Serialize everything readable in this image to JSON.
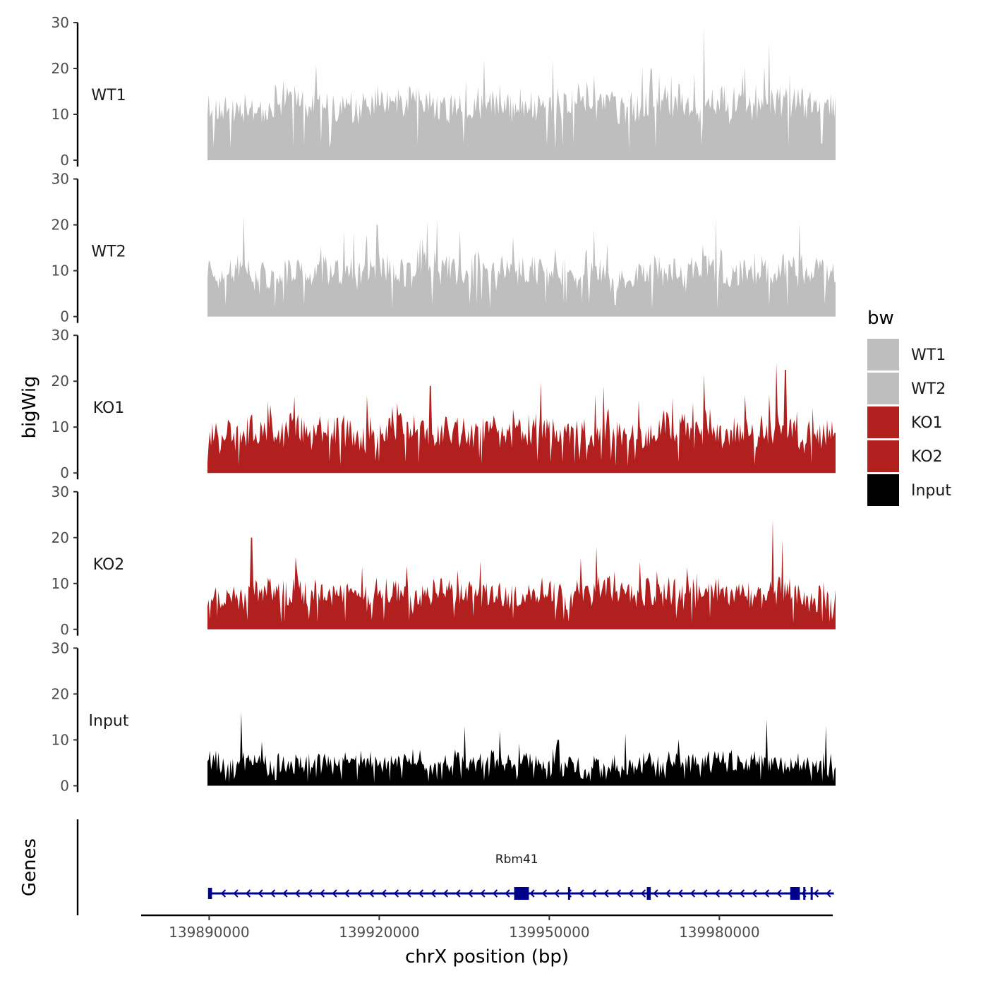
{
  "chart_data": {
    "type": "area",
    "ylabel": "bigWig",
    "xlabel": "chrX position (bp)",
    "gene_track_label": "Genes",
    "y_ticks": [
      0,
      10,
      20,
      30
    ],
    "ylim": [
      0,
      30
    ],
    "xlim": [
      139878000,
      140000000
    ],
    "x_ticks": [
      {
        "value": 139890000,
        "label": "139890000"
      },
      {
        "value": 139920000,
        "label": "139920000"
      },
      {
        "value": 139950000,
        "label": "139950000"
      },
      {
        "value": 139980000,
        "label": "139980000"
      }
    ],
    "signal_range": [
      139889700,
      140000500
    ],
    "legend": {
      "title": "bw",
      "entries": [
        {
          "label": "WT1",
          "color": "#bebebe"
        },
        {
          "label": "WT2",
          "color": "#bebebe"
        },
        {
          "label": "KO1",
          "color": "#b21f1f"
        },
        {
          "label": "KO2",
          "color": "#b21f1f"
        },
        {
          "label": "Input",
          "color": "#000000"
        }
      ]
    },
    "series": [
      {
        "name": "WT1",
        "color": "#bebebe",
        "base": 11,
        "amp": 5,
        "peak": 29,
        "peak_pos": 0.79,
        "seed": 11,
        "peaks": [
          [
            0.79,
            29
          ],
          [
            0.895,
            25.5
          ],
          [
            0.44,
            22
          ],
          [
            0.55,
            22
          ]
        ]
      },
      {
        "name": "WT2",
        "color": "#bebebe",
        "base": 9,
        "amp": 5,
        "peak": 22,
        "peak_pos": 0.06,
        "seed": 23,
        "peaks": [
          [
            0.058,
            22
          ],
          [
            0.365,
            21
          ],
          [
            0.81,
            21.5
          ],
          [
            0.27,
            20
          ]
        ]
      },
      {
        "name": "KO1",
        "color": "#b21f1f",
        "base": 8,
        "amp": 5,
        "peak": 24,
        "peak_pos": 0.906,
        "seed": 37,
        "peaks": [
          [
            0.906,
            24
          ],
          [
            0.92,
            22.5
          ],
          [
            0.79,
            21.5
          ],
          [
            0.355,
            19
          ],
          [
            0.63,
            19
          ]
        ]
      },
      {
        "name": "KO2",
        "color": "#b21f1f",
        "base": 7,
        "amp": 4.5,
        "peak": 24,
        "peak_pos": 0.9,
        "seed": 53,
        "peaks": [
          [
            0.9,
            24
          ],
          [
            0.07,
            20
          ],
          [
            0.62,
            18
          ],
          [
            0.915,
            19.5
          ]
        ]
      },
      {
        "name": "Input",
        "color": "#000000",
        "base": 4,
        "amp": 3.5,
        "peak": 16,
        "peak_pos": 0.054,
        "seed": 71,
        "peaks": [
          [
            0.054,
            16
          ],
          [
            0.89,
            14.5
          ],
          [
            0.985,
            13
          ],
          [
            0.41,
            13
          ]
        ]
      }
    ],
    "gene": {
      "name": "Rbm41",
      "color": "#00008b",
      "start": 139890000,
      "end": 140000200,
      "strand": "-",
      "exons": [
        {
          "start": 139889800,
          "end": 139890500,
          "kind": "utr"
        },
        {
          "start": 139943800,
          "end": 139946400,
          "kind": "cds"
        },
        {
          "start": 139953300,
          "end": 139953500,
          "kind": "cds"
        },
        {
          "start": 139967200,
          "end": 139967900,
          "kind": "cds"
        },
        {
          "start": 139992500,
          "end": 139994200,
          "kind": "cds"
        },
        {
          "start": 139994800,
          "end": 139995100,
          "kind": "cds"
        },
        {
          "start": 139996100,
          "end": 139996400,
          "kind": "cds"
        }
      ]
    }
  }
}
